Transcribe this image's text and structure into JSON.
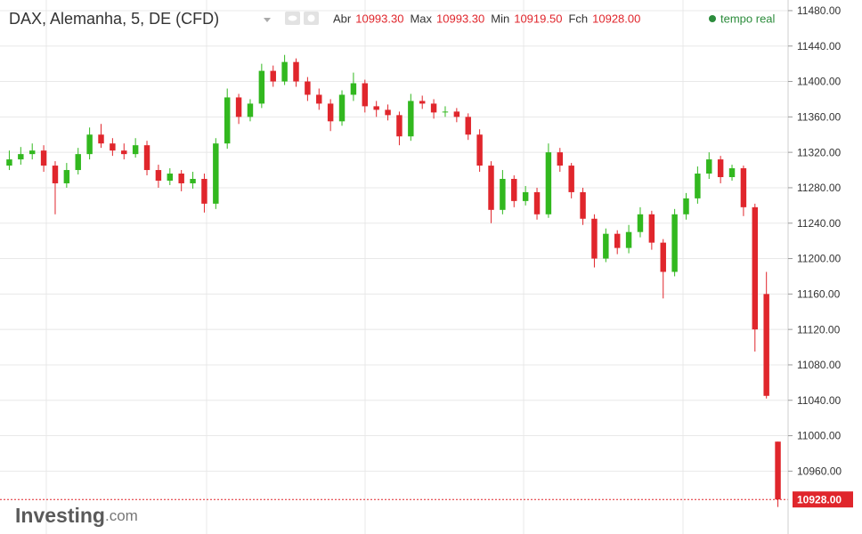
{
  "chart_data": {
    "type": "candlestick",
    "title": "DAX, Alemanha, 5, DE (CFD)",
    "stats": [
      {
        "label": "Abr",
        "value": {
          "value": 10993.3,
          "label": "10993.30"
        }
      },
      {
        "label": "Max",
        "value": {
          "value": 10993.3,
          "label": "10993.30"
        }
      },
      {
        "label": "Min",
        "value": {
          "value": 10919.5,
          "label": "10919.50"
        }
      },
      {
        "label": "Fch",
        "value": {
          "value": 10928,
          "label": "10928.00"
        }
      }
    ],
    "status": "tempo real",
    "logo": "Investing",
    "logo_suffix": ".com",
    "up_color": "#32b81f",
    "down_color": "#e0262c",
    "series": [
      {
        "open": [
          11305,
          11312,
          11318,
          11322,
          11305,
          11285,
          11300,
          11318,
          11340,
          11330,
          11322,
          11318,
          11328,
          11300,
          11288,
          11296,
          11285,
          11290,
          11262,
          11330,
          11382,
          11360,
          11375,
          11412,
          11400,
          11422,
          11400,
          11385,
          11375,
          11355,
          11385,
          11398,
          11372,
          11368,
          11362,
          11338,
          11378,
          11375,
          11365,
          11366,
          11360,
          11340,
          11305,
          11255,
          11290,
          11265,
          11275,
          11250,
          11320,
          11305,
          11275,
          11245,
          11200,
          11228,
          11212,
          11230,
          11250,
          11218,
          11185,
          11250,
          11268,
          11296,
          11312,
          11292,
          11302,
          11258,
          11160,
          10993.3
        ],
        "high": [
          11322,
          11326,
          11330,
          11328,
          11310,
          11308,
          11325,
          11348,
          11352,
          11336,
          11330,
          11336,
          11333,
          11306,
          11302,
          11300,
          11298,
          11296,
          11336,
          11392,
          11386,
          11380,
          11420,
          11418,
          11430,
          11426,
          11405,
          11392,
          11380,
          11390,
          11410,
          11402,
          11378,
          11374,
          11366,
          11386,
          11384,
          11380,
          11372,
          11370,
          11364,
          11346,
          11310,
          11300,
          11294,
          11282,
          11280,
          11330,
          11325,
          11308,
          11280,
          11250,
          11234,
          11232,
          11238,
          11258,
          11254,
          11222,
          11256,
          11274,
          11304,
          11320,
          11316,
          11306,
          11305,
          11262,
          11185,
          10993.3
        ],
        "low": [
          11300,
          11306,
          11312,
          11298,
          11250,
          11280,
          11295,
          11312,
          11325,
          11316,
          11312,
          11314,
          11294,
          11280,
          11283,
          11276,
          11279,
          11252,
          11256,
          11324,
          11352,
          11355,
          11370,
          11394,
          11396,
          11394,
          11378,
          11368,
          11344,
          11350,
          11378,
          11365,
          11360,
          11356,
          11328,
          11333,
          11369,
          11358,
          11360,
          11354,
          11334,
          11298,
          11240,
          11250,
          11258,
          11260,
          11244,
          11246,
          11298,
          11268,
          11238,
          11190,
          11196,
          11205,
          11206,
          11224,
          11210,
          11155,
          11180,
          11244,
          11262,
          11290,
          11285,
          11288,
          11248,
          11095,
          11042,
          10919.5
        ],
        "close": [
          11312,
          11318,
          11322,
          11305,
          11285,
          11300,
          11318,
          11340,
          11330,
          11322,
          11318,
          11328,
          11300,
          11288,
          11296,
          11285,
          11290,
          11262,
          11330,
          11382,
          11360,
          11375,
          11412,
          11400,
          11422,
          11400,
          11385,
          11375,
          11355,
          11385,
          11398,
          11372,
          11368,
          11362,
          11338,
          11378,
          11375,
          11365,
          11366,
          11360,
          11340,
          11305,
          11255,
          11290,
          11265,
          11275,
          11250,
          11320,
          11305,
          11275,
          11245,
          11200,
          11228,
          11212,
          11230,
          11250,
          11218,
          11185,
          11250,
          11268,
          11296,
          11312,
          11292,
          11302,
          11258,
          11120,
          11045,
          10928
        ]
      }
    ],
    "ylim": [
      10889,
      11492
    ],
    "yticks": [
      {
        "value": 10960,
        "label": "10960.00"
      },
      {
        "value": 11000,
        "label": "11000.00"
      },
      {
        "value": 11040,
        "label": "11040.00"
      },
      {
        "value": 11080,
        "label": "11080.00"
      },
      {
        "value": 11120,
        "label": "11120.00"
      },
      {
        "value": 11160,
        "label": "11160.00"
      },
      {
        "value": 11200,
        "label": "11200.00"
      },
      {
        "value": 11240,
        "label": "11240.00"
      },
      {
        "value": 11280,
        "label": "11280.00"
      },
      {
        "value": 11320,
        "label": "11320.00"
      },
      {
        "value": 11360,
        "label": "11360.00"
      },
      {
        "value": 11400,
        "label": "11400.00"
      },
      {
        "value": 11440,
        "label": "11440.00"
      },
      {
        "value": 11480,
        "label": "11480.00"
      }
    ],
    "grid": true,
    "last_price": {
      "value": 10928,
      "label": "10928.00"
    }
  }
}
